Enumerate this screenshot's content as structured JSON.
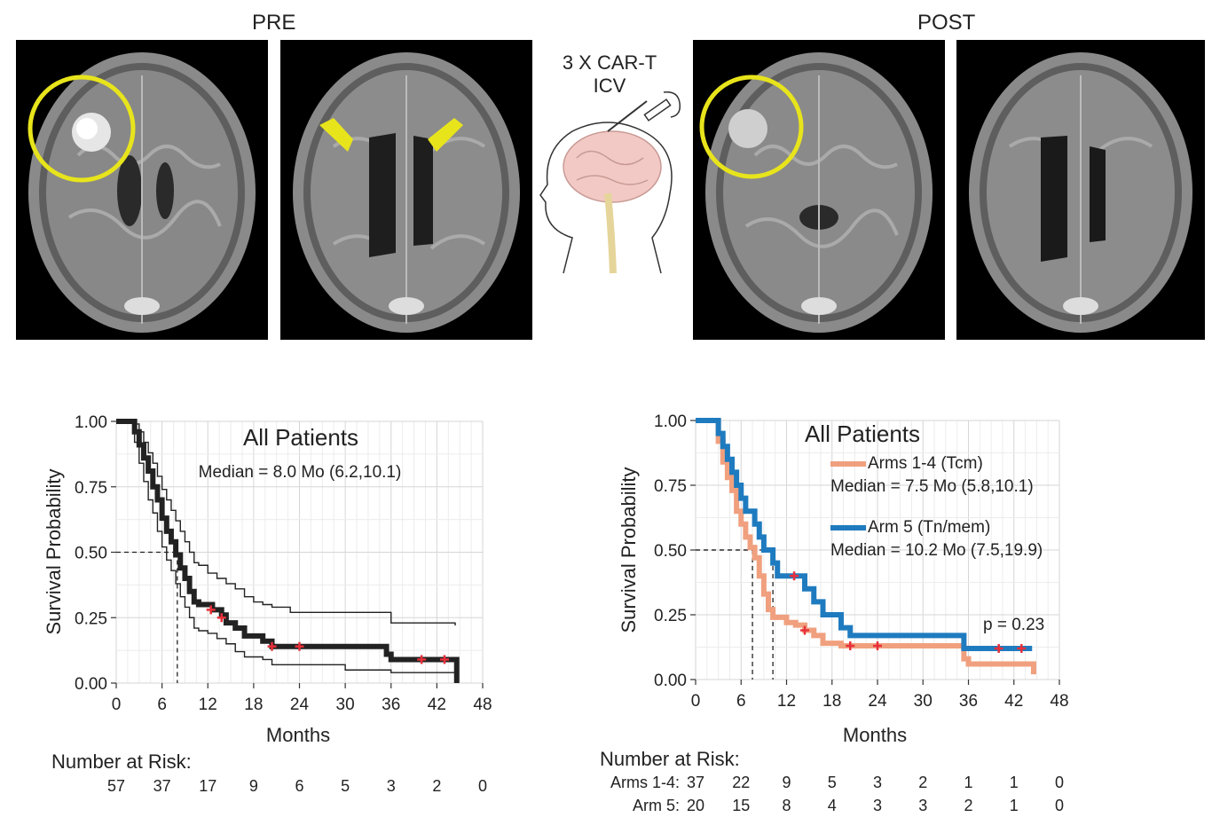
{
  "figure": {
    "pre_label": "PRE",
    "post_label": "POST",
    "procedure_label_line1": "3 X CAR-T",
    "procedure_label_line2": "ICV"
  },
  "colors": {
    "tcm_series": "#f0a07e",
    "tn_series": "#1f7bbf",
    "overall_series": "#222222",
    "censor_mark": "#e8303a",
    "highlight": "#e8e41c"
  },
  "icons": [
    "circle-highlight",
    "arrow-marker",
    "brain-illustration",
    "syringe"
  ],
  "chart_data": [
    {
      "type": "line",
      "subtype": "kaplan-meier",
      "title": "All Patients",
      "annotation": "Median = 8.0 Mo (6.2,10.1)",
      "xlabel": "Months",
      "ylabel": "Survival Probability",
      "xlim": [
        0,
        48
      ],
      "ylim": [
        0,
        1
      ],
      "xticks": [
        "0",
        "6",
        "12",
        "18",
        "24",
        "30",
        "36",
        "42",
        "48"
      ],
      "yticks": [
        "0.00",
        "0.25",
        "0.50",
        "0.75",
        "1.00"
      ],
      "grid": true,
      "median_months": 8.0,
      "series": [
        {
          "role": "estimate",
          "x": [
            0,
            1.8,
            2.4,
            3.0,
            3.6,
            4.2,
            4.8,
            5.4,
            6.0,
            6.6,
            7.2,
            7.8,
            8.4,
            9.0,
            9.6,
            10.2,
            10.8,
            11.4,
            12.6,
            13.8,
            14.4,
            15.6,
            16.8,
            18.0,
            19.2,
            20.4,
            24.0,
            27.0,
            30.0,
            33.0,
            34.8,
            35.4,
            36.0,
            40.0,
            43.0,
            44.4,
            44.6
          ],
          "y": [
            1.0,
            1.0,
            0.96,
            0.91,
            0.86,
            0.81,
            0.75,
            0.7,
            0.63,
            0.58,
            0.54,
            0.49,
            0.44,
            0.4,
            0.35,
            0.31,
            0.3,
            0.3,
            0.28,
            0.26,
            0.23,
            0.21,
            0.18,
            0.18,
            0.16,
            0.14,
            0.14,
            0.14,
            0.14,
            0.14,
            0.14,
            0.11,
            0.09,
            0.09,
            0.09,
            0.09,
            0.0
          ]
        },
        {
          "role": "upper_ci",
          "x": [
            0,
            1.8,
            2.4,
            3.0,
            3.6,
            4.2,
            4.8,
            5.4,
            6.0,
            6.6,
            7.2,
            7.8,
            8.4,
            9.0,
            9.6,
            10.2,
            10.8,
            12.0,
            13.2,
            14.4,
            15.6,
            16.8,
            18.0,
            19.2,
            20.4,
            22.8,
            30.0,
            36.0,
            44.4
          ],
          "y": [
            1.0,
            1.0,
            0.99,
            0.96,
            0.92,
            0.88,
            0.84,
            0.79,
            0.74,
            0.7,
            0.66,
            0.62,
            0.58,
            0.54,
            0.5,
            0.46,
            0.45,
            0.42,
            0.4,
            0.38,
            0.36,
            0.33,
            0.31,
            0.3,
            0.29,
            0.27,
            0.27,
            0.23,
            0.22
          ]
        },
        {
          "role": "lower_ci",
          "x": [
            0,
            1.8,
            2.4,
            3.0,
            3.6,
            4.2,
            4.8,
            5.4,
            6.0,
            6.6,
            7.2,
            7.8,
            8.4,
            9.0,
            9.6,
            10.2,
            10.8,
            12.0,
            13.2,
            14.4,
            15.6,
            16.8,
            18.0,
            19.2,
            20.4,
            22.8,
            30.0,
            36.0,
            44.4
          ],
          "y": [
            1.0,
            1.0,
            0.92,
            0.84,
            0.77,
            0.7,
            0.65,
            0.58,
            0.52,
            0.47,
            0.43,
            0.38,
            0.33,
            0.29,
            0.25,
            0.21,
            0.2,
            0.19,
            0.17,
            0.15,
            0.12,
            0.1,
            0.1,
            0.09,
            0.07,
            0.07,
            0.05,
            0.04,
            0.02
          ]
        }
      ],
      "censor": {
        "x": [
          12.4,
          13.8,
          20.4,
          24.0,
          40.0,
          43.0
        ],
        "y": [
          0.28,
          0.25,
          0.14,
          0.14,
          0.09,
          0.09
        ]
      },
      "risk_table": {
        "title": "Number at Risk:",
        "months": [
          0,
          6,
          12,
          18,
          24,
          30,
          36,
          42,
          48
        ],
        "rows": [
          {
            "label": "",
            "values": [
              "57",
              "37",
              "17",
              "9",
              "6",
              "5",
              "3",
              "2",
              "0"
            ]
          }
        ]
      }
    },
    {
      "type": "line",
      "subtype": "kaplan-meier",
      "title": "All Patients",
      "xlabel": "Months",
      "ylabel": "Survival Probability",
      "xlim": [
        0,
        48
      ],
      "ylim": [
        0,
        1
      ],
      "xticks": [
        "0",
        "6",
        "12",
        "18",
        "24",
        "30",
        "36",
        "42",
        "48"
      ],
      "yticks": [
        "0.00",
        "0.25",
        "0.50",
        "0.75",
        "1.00"
      ],
      "grid": true,
      "pvalue": "p = 0.23",
      "series": [
        {
          "name": "Arms 1-4 (Tcm)",
          "median_text": "Median = 7.5 Mo (5.8,10.1)",
          "median_months": 7.5,
          "x": [
            0,
            2.4,
            3.0,
            3.6,
            4.2,
            4.8,
            5.4,
            6.0,
            6.6,
            7.2,
            7.8,
            8.4,
            9.0,
            9.6,
            10.2,
            10.8,
            12.0,
            13.2,
            14.4,
            15.6,
            16.8,
            19.2,
            20.4,
            24.0,
            30.0,
            34.8,
            35.4,
            36.0,
            40.0,
            43.0,
            44.4,
            44.6
          ],
          "y": [
            1.0,
            1.0,
            0.92,
            0.84,
            0.78,
            0.73,
            0.65,
            0.6,
            0.55,
            0.51,
            0.47,
            0.4,
            0.33,
            0.27,
            0.24,
            0.24,
            0.22,
            0.21,
            0.19,
            0.17,
            0.14,
            0.13,
            0.13,
            0.13,
            0.13,
            0.13,
            0.08,
            0.06,
            0.06,
            0.06,
            0.06,
            0.02
          ]
        },
        {
          "name": "Arm 5 (Tn/mem)",
          "median_text": "Median = 10.2 Mo (7.5,19.9)",
          "median_months": 10.2,
          "x": [
            0,
            2.4,
            3.0,
            3.6,
            4.2,
            4.8,
            5.4,
            6.0,
            6.6,
            7.2,
            7.8,
            8.4,
            9.0,
            9.6,
            10.2,
            10.8,
            12.0,
            13.2,
            14.4,
            15.6,
            16.8,
            19.2,
            20.4,
            34.8,
            35.4,
            44.4
          ],
          "y": [
            1.0,
            1.0,
            0.95,
            0.9,
            0.85,
            0.8,
            0.75,
            0.7,
            0.65,
            0.65,
            0.6,
            0.55,
            0.5,
            0.5,
            0.45,
            0.4,
            0.4,
            0.4,
            0.35,
            0.3,
            0.25,
            0.2,
            0.17,
            0.17,
            0.12,
            0.12
          ]
        }
      ],
      "censor": {
        "x": [
          13.0,
          14.4,
          20.4,
          24.0,
          40.0,
          43.0
        ],
        "y": [
          0.4,
          0.19,
          0.13,
          0.13,
          0.12,
          0.12
        ]
      },
      "risk_table": {
        "title": "Number at Risk:",
        "months": [
          0,
          6,
          12,
          18,
          24,
          30,
          36,
          42,
          48
        ],
        "rows": [
          {
            "label": "Arms 1-4:",
            "values": [
              "37",
              "22",
              "9",
              "5",
              "3",
              "2",
              "1",
              "1",
              "0"
            ]
          },
          {
            "label": "Arm 5:",
            "values": [
              "20",
              "15",
              "8",
              "4",
              "3",
              "3",
              "2",
              "1",
              "0"
            ]
          }
        ]
      }
    }
  ]
}
